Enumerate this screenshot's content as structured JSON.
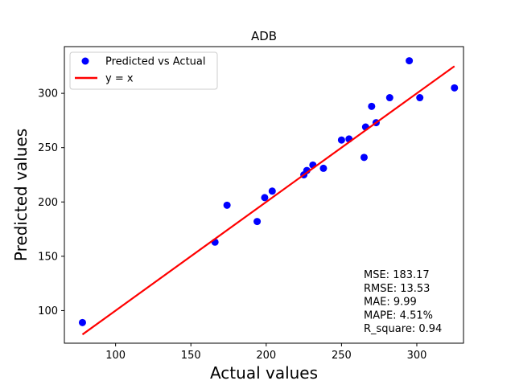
{
  "chart_data": {
    "type": "scatter",
    "title": "ADB",
    "xlabel": "Actual values",
    "ylabel": "Predicted values",
    "xlim": [
      66,
      331
    ],
    "ylim": [
      70,
      343
    ],
    "xticks": [
      100,
      150,
      200,
      250,
      300
    ],
    "yticks": [
      100,
      150,
      200,
      250,
      300
    ],
    "grid": false,
    "legend_position": "top-left",
    "series": [
      {
        "name": "Predicted vs Actual",
        "kind": "scatter",
        "color": "#0000ff",
        "points": [
          {
            "x": 78,
            "y": 89
          },
          {
            "x": 166,
            "y": 163
          },
          {
            "x": 174,
            "y": 197
          },
          {
            "x": 194,
            "y": 182
          },
          {
            "x": 199,
            "y": 204
          },
          {
            "x": 204,
            "y": 210
          },
          {
            "x": 225,
            "y": 225
          },
          {
            "x": 227,
            "y": 229
          },
          {
            "x": 231,
            "y": 234
          },
          {
            "x": 238,
            "y": 231
          },
          {
            "x": 250,
            "y": 257
          },
          {
            "x": 255,
            "y": 258
          },
          {
            "x": 265,
            "y": 241
          },
          {
            "x": 266,
            "y": 269
          },
          {
            "x": 270,
            "y": 288
          },
          {
            "x": 273,
            "y": 273
          },
          {
            "x": 282,
            "y": 296
          },
          {
            "x": 295,
            "y": 330
          },
          {
            "x": 302,
            "y": 296
          },
          {
            "x": 325,
            "y": 305
          }
        ]
      },
      {
        "name": "y = x",
        "kind": "line",
        "color": "#ff0000",
        "points": [
          {
            "x": 78,
            "y": 78
          },
          {
            "x": 325,
            "y": 325
          }
        ]
      }
    ],
    "annotations": [
      "MSE: 183.17",
      "RMSE: 13.53",
      "MAE: 9.99",
      "MAPE: 4.51%",
      "R_square: 0.94"
    ]
  }
}
